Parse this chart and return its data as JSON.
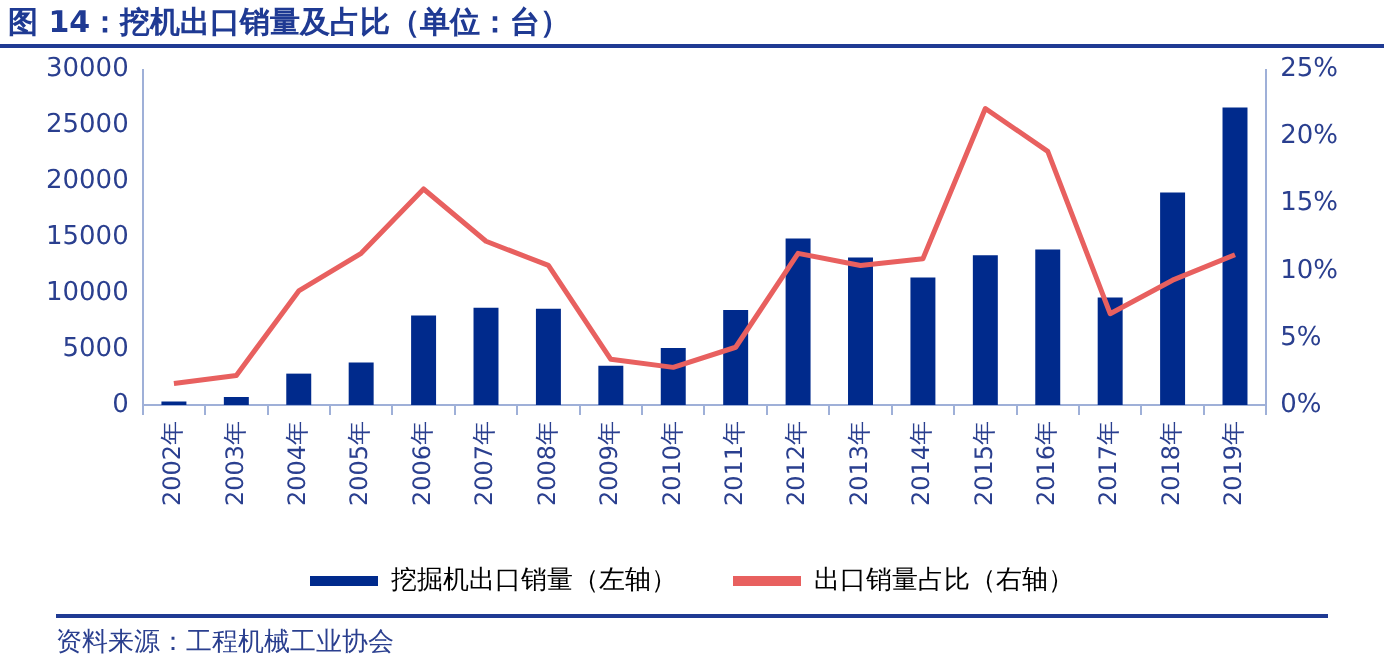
{
  "chart_data": {
    "type": "bar",
    "title": "图 14：挖机出口销量及占比（单位：台）",
    "annotations": [
      "资料来源：工程机械工业协会"
    ],
    "categories": [
      "2002年",
      "2003年",
      "2004年",
      "2005年",
      "2006年",
      "2007年",
      "2008年",
      "2009年",
      "2010年",
      "2011年",
      "2012年",
      "2013年",
      "2014年",
      "2015年",
      "2016年",
      "2017年",
      "2018年",
      "2019年"
    ],
    "series": [
      {
        "name": "挖掘机出口销量（左轴）",
        "color": "#002a8c",
        "values": [
          300,
          700,
          2800,
          3800,
          8000,
          8700,
          8600,
          3500,
          5100,
          8500,
          14900,
          13200,
          11400,
          13400,
          13900,
          9600,
          19000,
          26600
        ]
      },
      {
        "name": "出口销量占比（右轴）",
        "type": "line",
        "axis": "y2",
        "color": "#e8605f",
        "values": [
          1.6,
          2.2,
          8.5,
          11.3,
          16.1,
          12.2,
          10.4,
          3.4,
          2.8,
          4.3,
          11.3,
          10.4,
          10.9,
          22.1,
          18.9,
          6.8,
          9.3,
          11.2
        ]
      }
    ],
    "ylim": [
      0,
      30000
    ],
    "yticks": [
      0,
      5000,
      10000,
      15000,
      20000,
      25000,
      30000
    ],
    "y2lim": [
      0,
      25
    ],
    "y2ticks": [
      {
        "value": 0,
        "label": "0%"
      },
      {
        "value": 5,
        "label": "5%"
      },
      {
        "value": 10,
        "label": "10%"
      },
      {
        "value": 15,
        "label": "15%"
      },
      {
        "value": 20,
        "label": "20%"
      },
      {
        "value": 25,
        "label": "25%"
      }
    ],
    "grid": false,
    "legend": "bottom",
    "marker": "none",
    "line_style": "solid"
  }
}
